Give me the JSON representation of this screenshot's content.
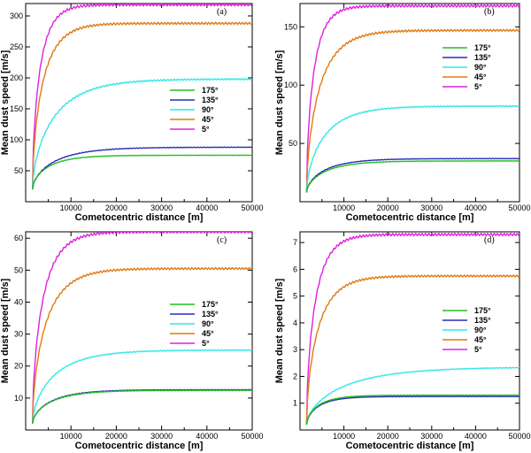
{
  "figure": "four-panel line chart of mean dust speed versus cometocentric distance",
  "colors": {
    "175": "#22c022",
    "135": "#2b2bb8",
    "90": "#33e6e6",
    "45": "#e07a10",
    "5": "#e020e0"
  },
  "chart_data": [
    {
      "type": "line",
      "panel": "(a)",
      "xlabel": "Cometocentric distance  [m]",
      "ylabel": "Mean dust speed [m/s]",
      "xlim": [
        0,
        50000
      ],
      "ylim": [
        0,
        320
      ],
      "xticks": [
        10000,
        20000,
        30000,
        40000,
        50000
      ],
      "yticks": [
        50,
        100,
        150,
        200,
        250,
        300
      ],
      "legend_position": "center-right",
      "series": [
        {
          "name": "175°",
          "color_key": "175",
          "start": 20,
          "plateau": 75,
          "scale": 5000
        },
        {
          "name": "135°",
          "color_key": "135",
          "start": 20,
          "plateau": 88,
          "scale": 7000
        },
        {
          "name": "90°",
          "color_key": "90",
          "start": 20,
          "plateau": 198,
          "scale": 7000
        },
        {
          "name": "45°",
          "color_key": "45",
          "start": 20,
          "plateau": 288,
          "scale": 3500
        },
        {
          "name": "5°",
          "color_key": "5",
          "start": 20,
          "plateau": 318,
          "scale": 2500
        }
      ]
    },
    {
      "type": "line",
      "panel": "(b)",
      "xlabel": "Cometocentric distance  [m]",
      "ylabel": "Mean dust speed [m/s]",
      "xlim": [
        0,
        50000
      ],
      "ylim": [
        0,
        170
      ],
      "xticks": [
        10000,
        20000,
        30000,
        40000,
        50000
      ],
      "yticks": [
        50,
        100,
        150
      ],
      "legend_position": "top-right",
      "series": [
        {
          "name": "175°",
          "color_key": "175",
          "start": 8,
          "plateau": 35,
          "scale": 6000
        },
        {
          "name": "135°",
          "color_key": "135",
          "start": 8,
          "plateau": 37,
          "scale": 6000
        },
        {
          "name": "90°",
          "color_key": "90",
          "start": 8,
          "plateau": 82,
          "scale": 6000
        },
        {
          "name": "45°",
          "color_key": "45",
          "start": 8,
          "plateau": 147,
          "scale": 4500
        },
        {
          "name": "5°",
          "color_key": "5",
          "start": 8,
          "plateau": 168,
          "scale": 2500
        }
      ]
    },
    {
      "type": "line",
      "panel": "(c)",
      "xlabel": "Cometocentric distance  [m]",
      "ylabel": "Mean dust speed [m/s]",
      "xlim": [
        0,
        50000
      ],
      "ylim": [
        0,
        62
      ],
      "xticks": [
        10000,
        20000,
        30000,
        40000,
        50000
      ],
      "yticks": [
        10,
        20,
        30,
        40,
        50,
        60
      ],
      "legend_position": "center-right",
      "series": [
        {
          "name": "175°",
          "color_key": "175",
          "start": 2,
          "plateau": 12.4,
          "scale": 6000
        },
        {
          "name": "135°",
          "color_key": "135",
          "start": 2,
          "plateau": 12.6,
          "scale": 6000
        },
        {
          "name": "90°",
          "color_key": "90",
          "start": 2,
          "plateau": 25,
          "scale": 7000
        },
        {
          "name": "45°",
          "color_key": "45",
          "start": 2,
          "plateau": 50.5,
          "scale": 4500
        },
        {
          "name": "5°",
          "color_key": "5",
          "start": 2,
          "plateau": 62,
          "scale": 3500
        }
      ]
    },
    {
      "type": "line",
      "panel": "(d)",
      "xlabel": "Cometocentric distance  [m]",
      "ylabel": "Mean dust speed [m/s]",
      "xlim": [
        0,
        50000
      ],
      "ylim": [
        0,
        7.4
      ],
      "xticks": [
        10000,
        20000,
        30000,
        40000,
        50000
      ],
      "yticks": [
        1,
        2,
        3,
        4,
        5,
        6,
        7
      ],
      "legend_position": "center-right",
      "series": [
        {
          "name": "175°",
          "color_key": "175",
          "start": 0.2,
          "plateau": 1.3,
          "scale": 4000
        },
        {
          "name": "135°",
          "color_key": "135",
          "start": 0.2,
          "plateau": 1.25,
          "scale": 4000
        },
        {
          "name": "90°",
          "color_key": "90",
          "start": 0.2,
          "plateau": 2.35,
          "scale": 12000
        },
        {
          "name": "45°",
          "color_key": "45",
          "start": 0.2,
          "plateau": 5.75,
          "scale": 4000
        },
        {
          "name": "5°",
          "color_key": "5",
          "start": 0.2,
          "plateau": 7.3,
          "scale": 3000
        }
      ]
    }
  ]
}
